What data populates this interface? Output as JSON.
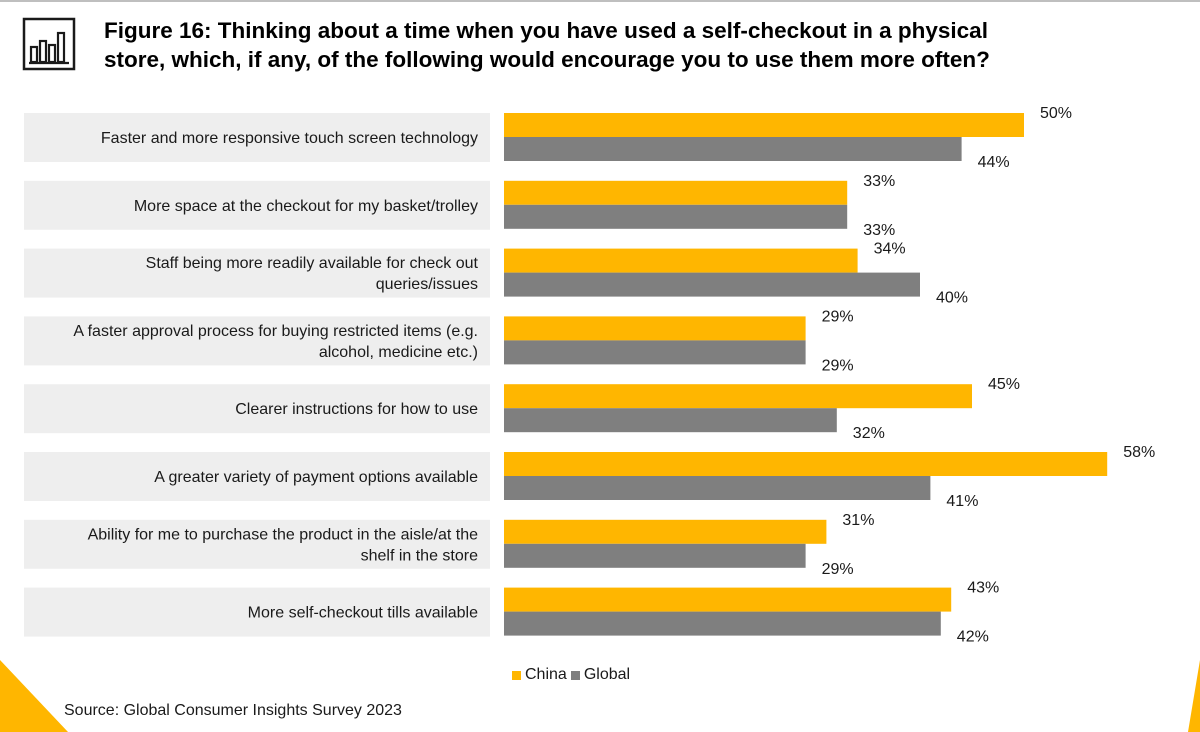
{
  "title": {
    "line1": "Figure 16: Thinking about a time when you have used a self-checkout in a physical",
    "line2": "store, which, if any, of the following would encourage you to use them more often?"
  },
  "icon": "bar-chart-icon",
  "source": "Source: Global Consumer Insights Survey 2023",
  "colors": {
    "china": "#FFB600",
    "global": "#7F7F7F",
    "label_bg": "#EEEEEE",
    "accent": "#FFB600"
  },
  "chart_data": {
    "type": "bar",
    "orientation": "horizontal",
    "title": "Figure 16: Thinking about a time when you have used a self-checkout in a physical store, which, if any, of the following would encourage you to use them more often?",
    "xlim": [
      0,
      60
    ],
    "grid": false,
    "legend_position": "bottom",
    "categories": [
      [
        "Faster and more responsive touch screen technology"
      ],
      [
        "More space at the checkout for my basket/trolley"
      ],
      [
        "Staff being more readily available for check out",
        "queries/issues"
      ],
      [
        "A faster approval process for buying restricted items (e.g.",
        "alcohol, medicine etc.)"
      ],
      [
        "Clearer instructions for how to use"
      ],
      [
        "A greater variety of payment options available"
      ],
      [
        "Ability for me to purchase the product in the aisle/at the",
        "shelf in the store"
      ],
      [
        "More self-checkout tills available"
      ]
    ],
    "series": [
      {
        "name": "China",
        "values": [
          50,
          33,
          34,
          29,
          45,
          58,
          31,
          43
        ],
        "labels": [
          "50%",
          "33%",
          "34%",
          "29%",
          "45%",
          "58%",
          "31%",
          "43%"
        ]
      },
      {
        "name": "Global",
        "values": [
          44,
          33,
          40,
          29,
          32,
          41,
          29,
          42
        ],
        "labels": [
          "44%",
          "33%",
          "40%",
          "29%",
          "32%",
          "41%",
          "29%",
          "42%"
        ]
      }
    ]
  }
}
